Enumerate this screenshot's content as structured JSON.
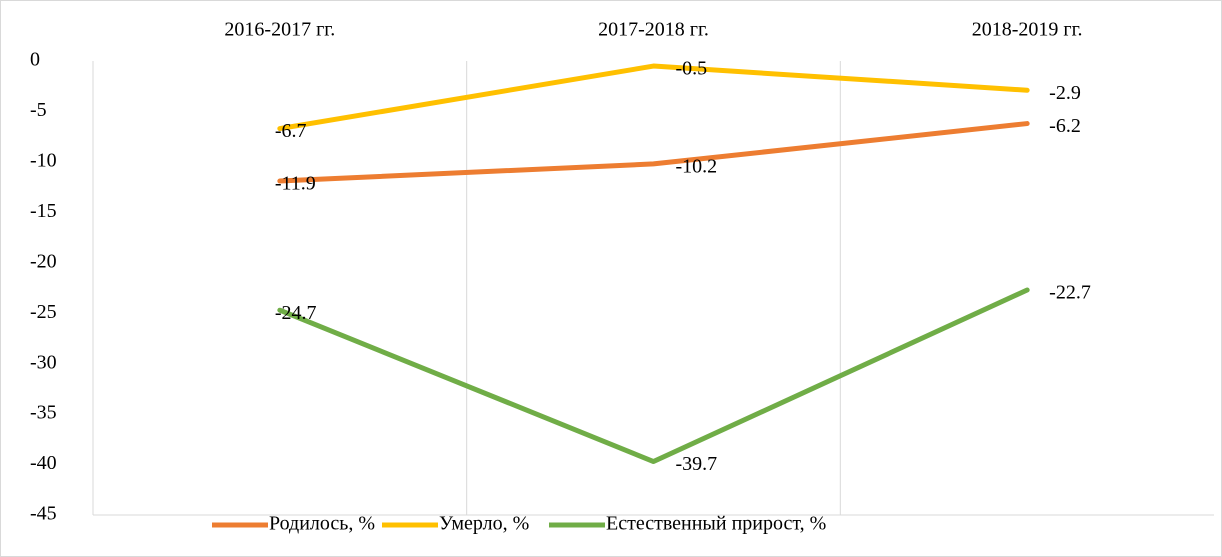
{
  "chart_data": {
    "type": "line",
    "categories": [
      "2016-2017 гг.",
      "2017-2018 гг.",
      "2018-2019 гг."
    ],
    "series": [
      {
        "name": "Родилось, %",
        "color": "#ED7D31",
        "values": [
          -11.9,
          -10.2,
          -6.2
        ]
      },
      {
        "name": "Умерло, %",
        "color": "#FFC000",
        "values": [
          -6.7,
          -0.5,
          -2.9
        ]
      },
      {
        "name": "Естественный прирост, %",
        "color": "#70AD47",
        "values": [
          -24.7,
          -39.7,
          -22.7
        ]
      }
    ],
    "ylim": [
      -45,
      0
    ],
    "yticks": [
      0,
      -5,
      -10,
      -15,
      -20,
      -25,
      -30,
      -35,
      -40,
      -45
    ],
    "legend": "bottom"
  }
}
